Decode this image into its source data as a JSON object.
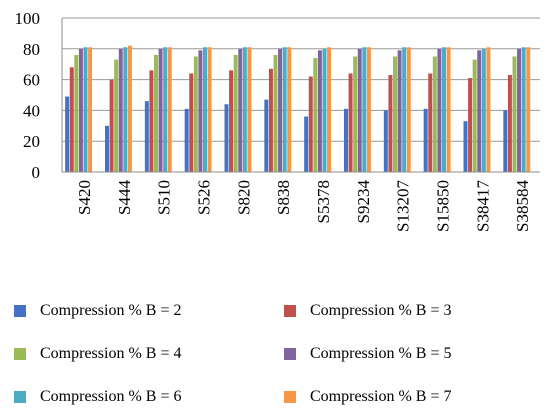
{
  "chart_data": {
    "type": "bar",
    "categories": [
      "S420",
      "S444",
      "S510",
      "S526",
      "S820",
      "S838",
      "S5378",
      "S9234",
      "S13207",
      "S15850",
      "S38417",
      "S38584"
    ],
    "series": [
      {
        "name": "Compression % B = 2",
        "color": "#4472C4",
        "values": [
          49,
          30,
          46,
          41,
          44,
          47,
          36,
          41,
          40,
          41,
          33,
          40
        ]
      },
      {
        "name": "Compression % B = 3",
        "color": "#C0504D",
        "values": [
          68,
          60,
          66,
          64,
          66,
          67,
          62,
          64,
          63,
          64,
          61,
          63
        ]
      },
      {
        "name": "Compression % B = 4",
        "color": "#9BBB59",
        "values": [
          76,
          73,
          76,
          75,
          76,
          76,
          74,
          75,
          75,
          75,
          73,
          75
        ]
      },
      {
        "name": "Compression % B = 5",
        "color": "#8064A2",
        "values": [
          80,
          80,
          80,
          79,
          80,
          80,
          79,
          80,
          79,
          80,
          79,
          80
        ]
      },
      {
        "name": "Compression % B = 6",
        "color": "#4BACC6",
        "values": [
          81,
          81,
          81,
          81,
          81,
          81,
          80,
          81,
          81,
          81,
          80,
          81
        ]
      },
      {
        "name": "Compression % B = 7",
        "color": "#F79646",
        "values": [
          81,
          82,
          81,
          81,
          81,
          81,
          81,
          81,
          81,
          81,
          81,
          81
        ]
      }
    ],
    "yticks": [
      "0",
      "20",
      "40",
      "60",
      "80",
      "100"
    ],
    "ylim": [
      0,
      100
    ],
    "grid": true,
    "legend_position": "bottom"
  }
}
